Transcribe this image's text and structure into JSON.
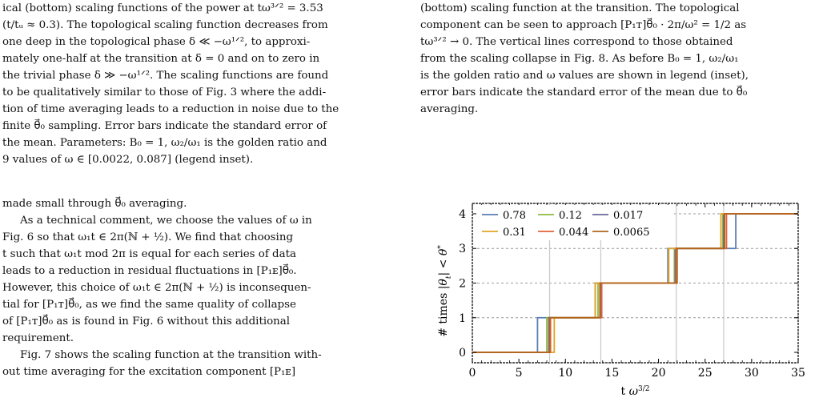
{
  "left_column": {
    "caption_lines": [
      "ical (bottom) scaling functions of the power at tω³ᐟ² = 3.53",
      "(t/tᵤ ≈ 0.3). The topological scaling function decreases from",
      "one deep in the topological phase δ ≪ −ω¹ᐟ², to approxi-",
      "mately one-half at the transition at δ = 0 and on to zero in",
      "the trivial phase δ ≫ −ω¹ᐟ². The scaling functions are found",
      "to be qualitatively similar to those of Fig. 3 where the addi-",
      "tion of time averaging leads to a reduction in noise due to the",
      "finite θ⃗₀ sampling. Error bars indicate the standard error of",
      "the mean. Parameters: B₀ = 1, ω₂/ω₁ is the golden ratio and",
      "9 values of ω ∈ [0.0022, 0.087] (legend inset)."
    ],
    "paragraph_1": "made small through θ⃗₀ averaging.",
    "paragraph_2_lines": [
      "As a technical comment, we choose the values of ω in",
      "Fig. 6 so that ω₁t ∈ 2π(ℕ + ½). We find that choosing",
      "t such that ω₁t  mod 2π is equal for each series of data",
      "leads to a reduction in residual fluctuations in [P₁ᴇ]θ⃗₀.",
      "However, this choice of ω₁t ∈ 2π(ℕ + ½) is inconsequen-",
      "tial for [P₁ᴛ]θ⃗₀, as we find the same quality of collapse",
      "of [P₁ᴛ]θ⃗₀ as is found in Fig. 6 without this additional",
      "requirement."
    ],
    "paragraph_3_lines": [
      "Fig. 7 shows the scaling function at the transition with-",
      "out time averaging for the excitation component [P₁ᴇ]"
    ]
  },
  "right_column": {
    "caption_lines": [
      "(bottom) scaling function at the transition. The topological",
      "component can be seen to approach [P₁ᴛ]θ⃗₀ · 2π/ω² = 1/2 as",
      "tω³ᐟ² → 0. The vertical lines correspond to those obtained",
      "from the scaling collapse in Fig. 8. As before B₀ = 1, ω₂/ω₁",
      "is the golden ratio and ω values are shown in legend (inset),",
      "error bars indicate the standard error of the mean due to θ⃗₀",
      "averaging."
    ]
  },
  "figure": {
    "chart_data": {
      "type": "line",
      "xlabel": "t ω^{3/2}",
      "ylabel": "# times |θ_t| < θ*",
      "xlim": [
        0,
        35
      ],
      "ylim": [
        -0.3,
        4.3
      ],
      "xticks": [
        "0",
        "5",
        "10",
        "15",
        "20",
        "25",
        "30",
        "35"
      ],
      "yticks": [
        "0",
        "1",
        "2",
        "3",
        "4"
      ],
      "vertical_lines": [
        8.3,
        13.8,
        21.9,
        27.0
      ],
      "horizontal_dashed": [
        1,
        2,
        3,
        4
      ],
      "series": [
        {
          "name": "0.78",
          "color": "#5a7fb5",
          "steps": [
            7.0,
            13.2,
            21.0,
            28.3
          ]
        },
        {
          "name": "0.12",
          "color": "#8dbb3e",
          "steps": [
            8.0,
            13.5,
            21.7,
            26.9
          ]
        },
        {
          "name": "0.017",
          "color": "#6a6a9d",
          "steps": [
            8.2,
            13.8,
            21.8,
            27.0
          ]
        },
        {
          "name": "0.31",
          "color": "#e3a422",
          "steps": [
            8.8,
            13.2,
            21.1,
            26.7
          ]
        },
        {
          "name": "0.044",
          "color": "#e0623a",
          "steps": [
            8.4,
            13.9,
            21.9,
            27.3
          ]
        },
        {
          "name": "0.0065",
          "color": "#b0651c",
          "steps": [
            8.3,
            13.7,
            22.0,
            27.1
          ]
        }
      ],
      "grid": "dashed horizontal + gray vertical lines",
      "legend_position": "top-left inset"
    }
  }
}
